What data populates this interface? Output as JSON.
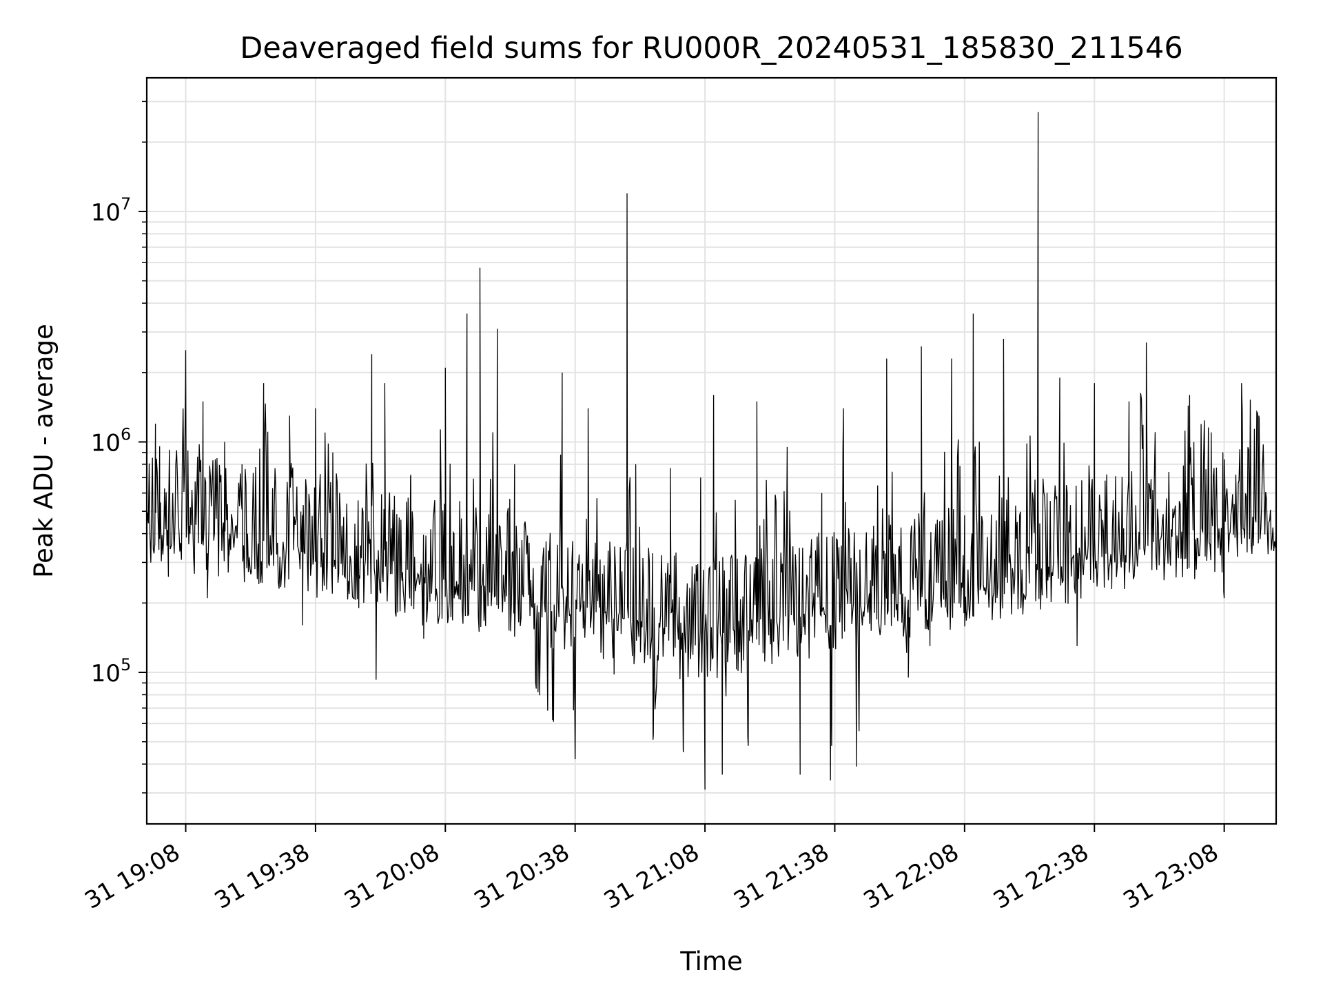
{
  "chart_data": {
    "type": "line",
    "title": "Deaveraged field sums for RU000R_20240531_185830_211546",
    "xlabel": "Time",
    "ylabel": "Peak ADU - average",
    "y_scale": "log",
    "grid": true,
    "xlim": [
      "2024-05-31 18:59",
      "2024-05-31 23:20"
    ],
    "ylim": [
      22000,
      38000000
    ],
    "x_ticks": [
      "2024-05-31 19:08",
      "2024-05-31 19:38",
      "2024-05-31 20:08",
      "2024-05-31 20:38",
      "2024-05-31 21:08",
      "2024-05-31 21:38",
      "2024-05-31 22:08",
      "2024-05-31 22:38",
      "2024-05-31 23:08"
    ],
    "x_tick_labels": [
      "31 19:08",
      "31 19:38",
      "31 20:08",
      "31 20:38",
      "31 21:08",
      "31 21:38",
      "31 22:08",
      "31 22:38",
      "31 23:08"
    ],
    "y_tick_labels": [
      {
        "value": 100000,
        "base": "10",
        "exp": "5"
      },
      {
        "value": 1000000,
        "base": "10",
        "exp": "6"
      },
      {
        "value": 10000000,
        "base": "10",
        "exp": "7"
      }
    ],
    "line_color": "#000000",
    "series": [
      {
        "x": [
          "2024-05-31 18:59",
          "2024-05-31 19:01",
          "2024-05-31 19:02",
          "2024-05-31 19:04",
          "2024-05-31 19:05",
          "2024-05-31 19:08",
          "2024-05-31 19:09",
          "2024-05-31 19:12",
          "2024-05-31 19:13",
          "2024-05-31 19:17",
          "2024-05-31 19:18",
          "2024-05-31 19:21",
          "2024-05-31 19:24",
          "2024-05-31 19:26",
          "2024-05-31 19:30",
          "2024-05-31 19:32",
          "2024-05-31 19:35",
          "2024-05-31 19:38",
          "2024-05-31 19:42",
          "2024-05-31 19:48",
          "2024-05-31 19:51",
          "2024-05-31 19:52",
          "2024-05-31 19:54",
          "2024-05-31 19:58",
          "2024-05-31 20:00",
          "2024-05-31 20:03",
          "2024-05-31 20:08",
          "2024-05-31 20:10",
          "2024-05-31 20:13",
          "2024-05-31 20:16",
          "2024-05-31 20:17",
          "2024-05-31 20:20",
          "2024-05-31 20:21",
          "2024-05-31 20:24",
          "2024-05-31 20:29",
          "2024-05-31 20:33",
          "2024-05-31 20:35",
          "2024-05-31 20:38",
          "2024-05-31 20:41",
          "2024-05-31 20:47",
          "2024-05-31 20:50",
          "2024-05-31 20:52",
          "2024-05-31 20:56",
          "2024-05-31 21:00",
          "2024-05-31 21:03",
          "2024-05-31 21:07",
          "2024-05-31 21:08",
          "2024-05-31 21:10",
          "2024-05-31 21:12",
          "2024-05-31 21:15",
          "2024-05-31 21:18",
          "2024-05-31 21:20",
          "2024-05-31 21:27",
          "2024-05-31 21:30",
          "2024-05-31 21:35",
          "2024-05-31 21:37",
          "2024-05-31 21:40",
          "2024-05-31 21:43",
          "2024-05-31 21:46",
          "2024-05-31 21:50",
          "2024-05-31 21:55",
          "2024-05-31 21:58",
          "2024-05-31 22:00",
          "2024-05-31 22:05",
          "2024-05-31 22:08",
          "2024-05-31 22:10",
          "2024-05-31 22:13",
          "2024-05-31 22:17",
          "2024-05-31 22:21",
          "2024-05-31 22:25",
          "2024-05-31 22:27",
          "2024-05-31 22:30",
          "2024-05-31 22:34",
          "2024-05-31 22:38",
          "2024-05-31 22:42",
          "2024-05-31 22:46",
          "2024-05-31 22:50",
          "2024-05-31 22:55",
          "2024-05-31 23:00",
          "2024-05-31 23:05",
          "2024-05-31 23:08",
          "2024-05-31 23:12",
          "2024-05-31 23:16",
          "2024-05-31 23:20"
        ],
        "y": [
          450000,
          1200000,
          380000,
          260000,
          600000,
          2500000,
          400000,
          1500000,
          210000,
          1000000,
          380000,
          800000,
          420000,
          1800000,
          240000,
          1300000,
          160000,
          1400000,
          900000,
          190000,
          2400000,
          93000,
          1800000,
          250000,
          720000,
          140000,
          2100000,
          400000,
          3600000,
          5700000,
          180000,
          3100000,
          330000,
          800000,
          85000,
          61000,
          2000000,
          42000,
          1400000,
          98000,
          12000000,
          800000,
          51000,
          770000,
          45000,
          700000,
          31000,
          1600000,
          36000,
          560000,
          48000,
          1500000,
          950000,
          36000,
          600000,
          34000,
          1400000,
          39000,
          220000,
          2300000,
          95000,
          2600000,
          130000,
          2300000,
          480000,
          3600000,
          230000,
          2800000,
          190000,
          27000000,
          210000,
          1900000,
          130000,
          1800000,
          230000,
          1500000,
          2700000,
          300000,
          1600000,
          1100000,
          210000,
          1800000,
          1300000,
          420000
        ]
      }
    ]
  }
}
